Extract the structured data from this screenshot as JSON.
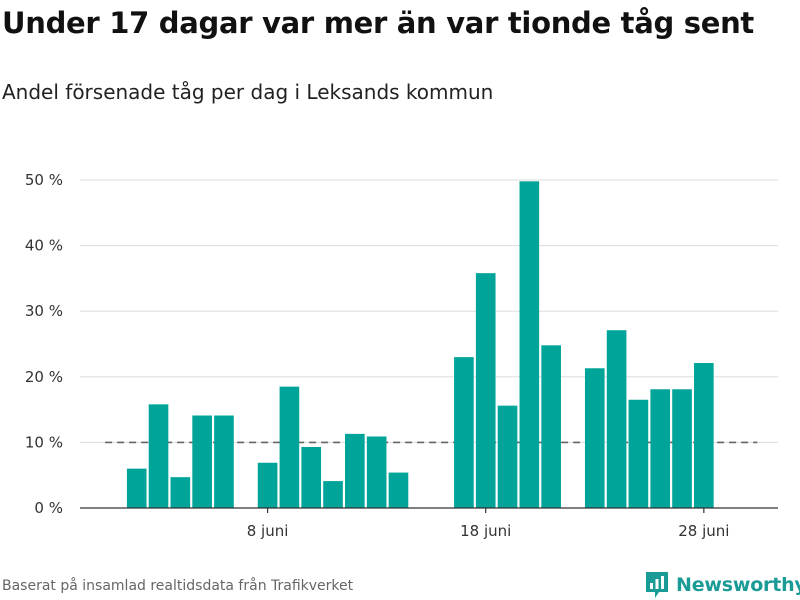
{
  "header": {
    "title": "Under 17 dagar var mer än var tionde tåg sent",
    "subtitle": "Andel försenade tåg per dag i Leksands kommun"
  },
  "footer": {
    "source": "Baserat på insamlad realtidsdata från Trafikverket",
    "brand": "Newsworthy"
  },
  "colors": {
    "bar": "#00a499",
    "grid": "#dddddd",
    "axis": "#333333",
    "reference_line": "#666666",
    "brand": "#1a9b96"
  },
  "chart_data": {
    "type": "bar",
    "title": "Under 17 dagar var mer än var tionde tåg sent",
    "subtitle": "Andel försenade tåg per dag i Leksands kommun",
    "x_start_day": 1,
    "x_end_day": 30,
    "xlim": [
      -0.6,
      31.4
    ],
    "ylim": [
      0,
      50
    ],
    "y_ticks": [
      0,
      10,
      20,
      30,
      40,
      50
    ],
    "y_tick_labels": [
      "0 %",
      "10 %",
      "20 %",
      "30 %",
      "40 %",
      "50 %"
    ],
    "x_ticks": [
      8,
      18,
      28
    ],
    "x_tick_labels": [
      "8 juni",
      "18 juni",
      "28 juni"
    ],
    "days": [
      1,
      2,
      3,
      4,
      5,
      6,
      7,
      8,
      9,
      10,
      11,
      12,
      13,
      14,
      15,
      16,
      17,
      18,
      19,
      20,
      21,
      22,
      23,
      24,
      25,
      26,
      27,
      28,
      29,
      30
    ],
    "values": [
      null,
      6.0,
      15.8,
      4.7,
      14.1,
      14.1,
      null,
      6.9,
      18.5,
      9.3,
      4.1,
      11.3,
      10.9,
      5.4,
      null,
      null,
      23.0,
      35.8,
      15.6,
      49.8,
      24.8,
      null,
      21.3,
      27.1,
      16.5,
      18.1,
      18.1,
      22.1,
      null,
      null
    ],
    "reference_line": 10,
    "grid": true,
    "legend": "none"
  }
}
